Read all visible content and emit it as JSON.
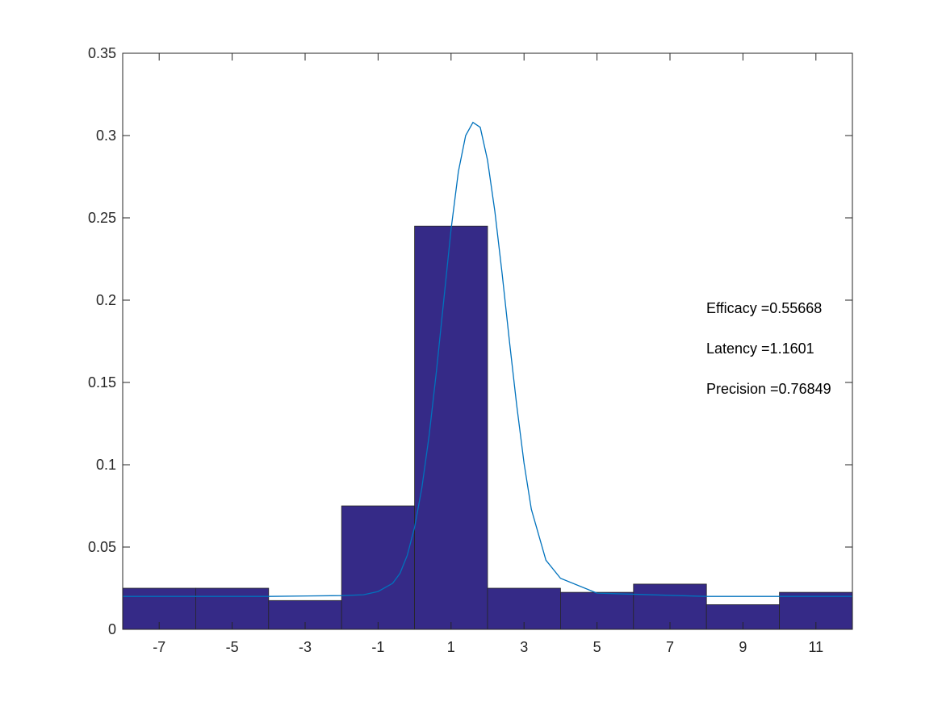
{
  "chart_data": {
    "type": "bar",
    "title": "",
    "xlabel": "",
    "ylabel": "",
    "xlim": [
      -8,
      12
    ],
    "ylim": [
      0,
      0.35
    ],
    "grid": false,
    "categories": [
      "-7",
      "-5",
      "-3",
      "-1",
      "1",
      "3",
      "5",
      "7",
      "9",
      "11"
    ],
    "bin_centers": [
      -7,
      -5,
      -3,
      -1,
      1,
      3,
      5,
      7,
      9,
      11
    ],
    "bin_width": 2,
    "values": [
      0.025,
      0.025,
      0.0175,
      0.075,
      0.245,
      0.025,
      0.0225,
      0.0275,
      0.015,
      0.0225
    ],
    "x_ticks": [
      -7,
      -5,
      -3,
      -1,
      1,
      3,
      5,
      7,
      9,
      11
    ],
    "x_tick_labels": [
      "-7",
      "-5",
      "-3",
      "-1",
      "1",
      "3",
      "5",
      "7",
      "9",
      "11"
    ],
    "y_ticks": [
      0,
      0.05,
      0.1,
      0.15,
      0.2,
      0.25,
      0.3,
      0.35
    ],
    "y_tick_labels": [
      "0",
      "0.05",
      "0.1",
      "0.15",
      "0.2",
      "0.25",
      "0.3",
      "0.35"
    ],
    "fit_curve": {
      "x": [
        -8,
        -4,
        -2,
        -1.4,
        -1,
        -0.6,
        -0.4,
        -0.2,
        0,
        0.2,
        0.4,
        0.6,
        0.8,
        1.0,
        1.2,
        1.4,
        1.6,
        1.8,
        2.0,
        2.2,
        2.4,
        2.6,
        2.8,
        3.0,
        3.2,
        3.6,
        4,
        5,
        8,
        12
      ],
      "y": [
        0.02,
        0.02,
        0.0205,
        0.021,
        0.023,
        0.028,
        0.034,
        0.045,
        0.062,
        0.086,
        0.118,
        0.157,
        0.2,
        0.243,
        0.278,
        0.3,
        0.308,
        0.305,
        0.285,
        0.254,
        0.216,
        0.175,
        0.136,
        0.101,
        0.073,
        0.042,
        0.031,
        0.022,
        0.02,
        0.02
      ]
    },
    "annotations": [
      "Efficacy =0.55668",
      "Latency =1.1601",
      "Precision =0.76849"
    ],
    "colors": {
      "bar_fill": "#352a87",
      "bar_edge": "#262626",
      "fit_line": "#0072bd",
      "axes": "#262626"
    }
  }
}
